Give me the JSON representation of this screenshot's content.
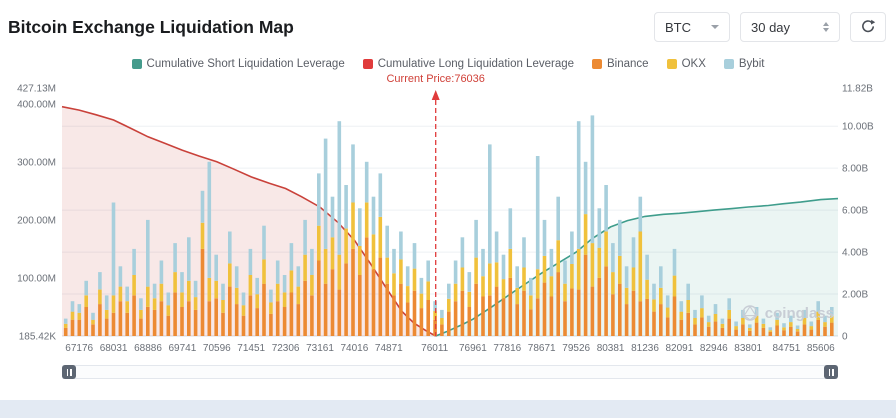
{
  "header": {
    "title": "Bitcoin Exchange Liquidation Map",
    "symbol_select": {
      "value": "BTC"
    },
    "period_select": {
      "value": "30 day"
    }
  },
  "legend": [
    {
      "label": "Cumulative Short Liquidation Leverage",
      "color": "#459b8c"
    },
    {
      "label": "Cumulative Long Liquidation Leverage",
      "color": "#e03b3b"
    },
    {
      "label": "Binance",
      "color": "#ec8a33"
    },
    {
      "label": "OKX",
      "color": "#f0c13c"
    },
    {
      "label": "Bybit",
      "color": "#a8cfdc"
    }
  ],
  "watermark": {
    "text": "coinglass"
  },
  "chart_data": {
    "type": "bar",
    "subtype": "stacked-liquidation-bars-with-cumulative-lines",
    "title": "Bitcoin Exchange Liquidation Map",
    "annotation": {
      "label": "Current Price:76036",
      "price": 76036,
      "color": "#d04038"
    },
    "x_axis": {
      "min": 66749,
      "max": 86033,
      "ticks": [
        67176,
        68031,
        68886,
        69741,
        70596,
        71451,
        72306,
        73161,
        74016,
        74871,
        76011,
        76961,
        77816,
        78671,
        79526,
        80381,
        81236,
        82091,
        82946,
        83801,
        84751,
        85606
      ]
    },
    "left_axis": {
      "unit": "USD (millions)",
      "max_value_m": 427.13,
      "labels": [
        {
          "text": "427.13M",
          "value": 427.13
        },
        {
          "text": "400.00M",
          "value": 400
        },
        {
          "text": "300.00M",
          "value": 300
        },
        {
          "text": "200.00M",
          "value": 200
        },
        {
          "text": "100.00M",
          "value": 100
        },
        {
          "text": "185.42K",
          "value": 0.185
        }
      ]
    },
    "right_axis": {
      "unit": "USD (billions)",
      "max_value_b": 11.82,
      "labels": [
        {
          "text": "11.82B",
          "value": 11.82
        },
        {
          "text": "10.00B",
          "value": 10
        },
        {
          "text": "8.00B",
          "value": 8
        },
        {
          "text": "6.00B",
          "value": 6
        },
        {
          "text": "4.00B",
          "value": 4
        },
        {
          "text": "2.00B",
          "value": 2
        },
        {
          "text": "0",
          "value": 0
        }
      ]
    },
    "lines": [
      {
        "name": "Cumulative Long Liquidation Leverage",
        "axis": "left",
        "unit": "M",
        "color": "#c9413a",
        "fill_opacity": 0.12,
        "points": [
          [
            66749,
            395
          ],
          [
            67176,
            389
          ],
          [
            67600,
            381
          ],
          [
            68031,
            372
          ],
          [
            68450,
            358
          ],
          [
            68886,
            343
          ],
          [
            69300,
            332
          ],
          [
            69741,
            320
          ],
          [
            70150,
            310
          ],
          [
            70596,
            300
          ],
          [
            71000,
            288
          ],
          [
            71451,
            274
          ],
          [
            71900,
            263
          ],
          [
            72306,
            254
          ],
          [
            72700,
            240
          ],
          [
            73161,
            222
          ],
          [
            73600,
            196
          ],
          [
            74016,
            165
          ],
          [
            74400,
            126
          ],
          [
            74871,
            76
          ],
          [
            75200,
            42
          ],
          [
            75500,
            22
          ],
          [
            75800,
            9
          ],
          [
            76036,
            0
          ]
        ]
      },
      {
        "name": "Cumulative Short Liquidation Leverage",
        "axis": "right",
        "unit": "B",
        "color": "#3f9d8c",
        "fill_opacity": 0.1,
        "points": [
          [
            76036,
            0
          ],
          [
            76300,
            0.2
          ],
          [
            76700,
            0.55
          ],
          [
            76961,
            0.8
          ],
          [
            77400,
            1.35
          ],
          [
            77816,
            1.9
          ],
          [
            78200,
            2.4
          ],
          [
            78671,
            3.0
          ],
          [
            79100,
            3.5
          ],
          [
            79526,
            4.0
          ],
          [
            79930,
            4.65
          ],
          [
            80381,
            5.2
          ],
          [
            80800,
            5.5
          ],
          [
            81236,
            5.7
          ],
          [
            81700,
            5.8
          ],
          [
            82091,
            5.85
          ],
          [
            82500,
            5.92
          ],
          [
            82946,
            6.0
          ],
          [
            83400,
            6.07
          ],
          [
            83801,
            6.15
          ],
          [
            84300,
            6.22
          ],
          [
            84656,
            6.3
          ],
          [
            85100,
            6.38
          ],
          [
            85606,
            6.5
          ],
          [
            86033,
            6.55
          ]
        ]
      }
    ],
    "bars": {
      "stack": [
        "Binance",
        "OKX",
        "Bybit"
      ],
      "colors": [
        "#ec8a33",
        "#f0c13c",
        "#a8cfdc"
      ],
      "unit": "M",
      "format": "[price, binance_m, okx_m, bybit_m]",
      "values": [
        [
          66840,
          14,
          7,
          9
        ],
        [
          67010,
          28,
          14,
          18
        ],
        [
          67180,
          28,
          12,
          15
        ],
        [
          67350,
          50,
          20,
          25
        ],
        [
          67520,
          20,
          8,
          12
        ],
        [
          67690,
          55,
          25,
          30
        ],
        [
          67860,
          30,
          15,
          25
        ],
        [
          68030,
          40,
          30,
          160
        ],
        [
          68200,
          60,
          25,
          35
        ],
        [
          68370,
          40,
          20,
          25
        ],
        [
          68540,
          70,
          35,
          45
        ],
        [
          68710,
          30,
          15,
          20
        ],
        [
          68880,
          50,
          35,
          115
        ],
        [
          69050,
          45,
          20,
          25
        ],
        [
          69220,
          60,
          30,
          40
        ],
        [
          69390,
          35,
          18,
          22
        ],
        [
          69560,
          75,
          35,
          50
        ],
        [
          69730,
          50,
          25,
          35
        ],
        [
          69900,
          60,
          35,
          75
        ],
        [
          70070,
          45,
          22,
          28
        ],
        [
          70240,
          150,
          45,
          55
        ],
        [
          70410,
          60,
          40,
          200
        ],
        [
          70580,
          65,
          30,
          45
        ],
        [
          70750,
          40,
          22,
          28
        ],
        [
          70920,
          85,
          40,
          55
        ],
        [
          71090,
          55,
          28,
          37
        ],
        [
          71260,
          35,
          18,
          22
        ],
        [
          71430,
          70,
          35,
          45
        ],
        [
          71600,
          48,
          24,
          28
        ],
        [
          71770,
          90,
          42,
          58
        ],
        [
          71940,
          38,
          20,
          22
        ],
        [
          72110,
          60,
          30,
          40
        ],
        [
          72280,
          50,
          25,
          30
        ],
        [
          72450,
          75,
          38,
          47
        ],
        [
          72620,
          55,
          30,
          35
        ],
        [
          72790,
          95,
          45,
          60
        ],
        [
          72960,
          70,
          35,
          45
        ],
        [
          73130,
          130,
          60,
          90
        ],
        [
          73300,
          90,
          60,
          190
        ],
        [
          73470,
          115,
          55,
          70
        ],
        [
          73640,
          80,
          60,
          230
        ],
        [
          73810,
          125,
          60,
          75
        ],
        [
          73980,
          150,
          80,
          100
        ],
        [
          74150,
          105,
          50,
          65
        ],
        [
          74320,
          170,
          60,
          70
        ],
        [
          74490,
          115,
          60,
          65
        ],
        [
          74660,
          135,
          70,
          75
        ],
        [
          74830,
          90,
          45,
          55
        ],
        [
          75000,
          70,
          38,
          42
        ],
        [
          75170,
          90,
          42,
          48
        ],
        [
          75340,
          58,
          28,
          34
        ],
        [
          75510,
          78,
          38,
          44
        ],
        [
          75680,
          48,
          25,
          27
        ],
        [
          75850,
          62,
          32,
          36
        ],
        [
          76020,
          28,
          15,
          17
        ],
        [
          76190,
          20,
          11,
          14
        ],
        [
          76360,
          42,
          22,
          26
        ],
        [
          76530,
          60,
          30,
          40
        ],
        [
          76700,
          78,
          40,
          52
        ],
        [
          76870,
          50,
          26,
          34
        ],
        [
          77040,
          90,
          45,
          65
        ],
        [
          77210,
          68,
          35,
          47
        ],
        [
          77380,
          70,
          55,
          205
        ],
        [
          77550,
          85,
          42,
          53
        ],
        [
          77720,
          65,
          33,
          42
        ],
        [
          77890,
          100,
          50,
          70
        ],
        [
          78060,
          55,
          28,
          37
        ],
        [
          78230,
          78,
          40,
          52
        ],
        [
          78400,
          46,
          24,
          30
        ],
        [
          78570,
          65,
          50,
          195
        ],
        [
          78740,
          92,
          46,
          62
        ],
        [
          78910,
          68,
          35,
          47
        ],
        [
          79080,
          110,
          55,
          75
        ],
        [
          79250,
          60,
          30,
          40
        ],
        [
          79420,
          82,
          42,
          56
        ],
        [
          79590,
          80,
          70,
          220
        ],
        [
          79760,
          140,
          70,
          90
        ],
        [
          79930,
          85,
          75,
          220
        ],
        [
          80100,
          100,
          52,
          68
        ],
        [
          80270,
          120,
          60,
          80
        ],
        [
          80440,
          72,
          38,
          50
        ],
        [
          80610,
          90,
          48,
          62
        ],
        [
          80780,
          55,
          28,
          37
        ],
        [
          80950,
          78,
          40,
          52
        ],
        [
          81120,
          60,
          120,
          60
        ],
        [
          81290,
          64,
          33,
          43
        ],
        [
          81460,
          42,
          21,
          27
        ],
        [
          81630,
          55,
          28,
          37
        ],
        [
          81800,
          32,
          17,
          21
        ],
        [
          81970,
          68,
          36,
          46
        ],
        [
          82140,
          28,
          14,
          18
        ],
        [
          82310,
          40,
          22,
          28
        ],
        [
          82480,
          20,
          11,
          14
        ],
        [
          82650,
          32,
          16,
          22
        ],
        [
          82820,
          16,
          8,
          11
        ],
        [
          82990,
          25,
          13,
          17
        ],
        [
          83160,
          14,
          7,
          9
        ],
        [
          83330,
          30,
          15,
          20
        ],
        [
          83500,
          11,
          6,
          8
        ],
        [
          83670,
          20,
          11,
          14
        ],
        [
          83840,
          9,
          5,
          6
        ],
        [
          84010,
          23,
          12,
          15
        ],
        [
          84180,
          14,
          7,
          9
        ],
        [
          84350,
          7,
          3,
          5
        ],
        [
          84520,
          18,
          10,
          12
        ],
        [
          84690,
          10,
          5,
          7
        ],
        [
          84860,
          16,
          8,
          11
        ],
        [
          85030,
          8,
          4,
          6
        ],
        [
          85200,
          20,
          11,
          14
        ],
        [
          85370,
          11,
          6,
          8
        ],
        [
          85540,
          28,
          14,
          18
        ],
        [
          85710,
          16,
          8,
          11
        ],
        [
          85880,
          23,
          12,
          15
        ]
      ]
    },
    "grid": {
      "horizontal_gridlines": true,
      "vertical_gridlines": false,
      "legend_position": "top-center"
    }
  }
}
